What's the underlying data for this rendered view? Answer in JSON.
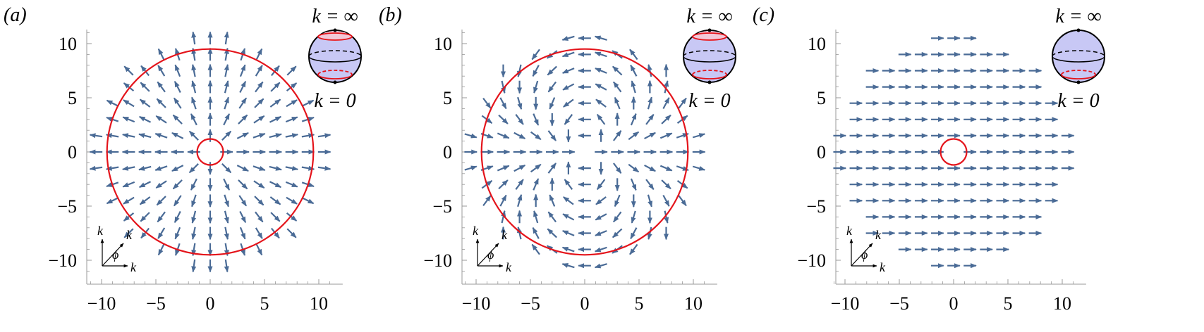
{
  "colors": {
    "arrow": "#4a6b96",
    "circle": "#e4141b",
    "sphere_fill": "#c8c8f5",
    "cap_fill": "#f2c8d8",
    "axis": "#999999"
  },
  "chart_data": [
    {
      "type": "vector-field",
      "panel_label": "(a)",
      "field": "radial",
      "xlim": [
        -12,
        12
      ],
      "ylim": [
        -12,
        12
      ],
      "xticks": [
        "−10",
        "−5",
        "0",
        "5",
        "10"
      ],
      "yticks": [
        "10",
        "5",
        "0",
        "−5",
        "−10"
      ],
      "circles": [
        {
          "cx": 0,
          "cy": 0,
          "r": 9.5
        },
        {
          "cx": 0,
          "cy": 0,
          "r": 1.2
        }
      ],
      "top_label": "k = ∞",
      "bottom_label": "k = 0",
      "inset_sphere": "red caps at both poles",
      "corner_legend": {
        "ky": "k",
        "kx": "k",
        "k": "k",
        "phi": "ϕ"
      }
    },
    {
      "type": "vector-field",
      "panel_label": "(b)",
      "field": "dipole",
      "xlim": [
        -12,
        12
      ],
      "ylim": [
        -12,
        12
      ],
      "xticks": [
        "−10",
        "−5",
        "0",
        "5",
        "10"
      ],
      "yticks": [
        "10",
        "5",
        "0",
        "−5",
        "−10"
      ],
      "circles": [
        {
          "cx": 0,
          "cy": 0,
          "r": 9.5
        }
      ],
      "top_label": "k = ∞",
      "bottom_label": "k = 0",
      "inset_sphere": "red caps at both poles",
      "corner_legend": {
        "ky": "k",
        "kx": "k",
        "k": "k",
        "phi": "ϕ"
      }
    },
    {
      "type": "vector-field",
      "panel_label": "(c)",
      "field": "uniform +x",
      "xlim": [
        -12,
        12
      ],
      "ylim": [
        -12,
        12
      ],
      "xticks": [
        "−10",
        "−5",
        "0",
        "5",
        "10"
      ],
      "yticks": [
        "10",
        "5",
        "0",
        "−5",
        "−10"
      ],
      "circles": [
        {
          "cx": 0,
          "cy": 0,
          "r": 1.2
        }
      ],
      "top_label": "k = ∞",
      "bottom_label": "k = 0",
      "inset_sphere": "red cap at south pole",
      "corner_legend": {
        "ky": "k",
        "kx": "k",
        "k": "k",
        "phi": "ϕ"
      }
    }
  ]
}
